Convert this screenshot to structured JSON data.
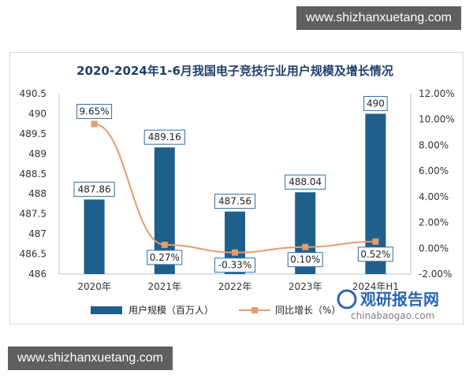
{
  "watermark": {
    "top": "www.shizhanxuetang.com",
    "bottom": "www.shizhanxuetang.com"
  },
  "logo": {
    "name": "观研报告网",
    "url": "chinabaogao.com"
  },
  "colors": {
    "bar": "#1f5f8b",
    "line": "#e89a6e",
    "title": "#1f3f6b",
    "label_border": "#2a6fa8",
    "grid": "#d9d9d9"
  },
  "chart_data": {
    "type": "bar",
    "title": "2020-2024年1-6月我国电子竞技行业用户规模及增长情况",
    "categories": [
      "2020年",
      "2021年",
      "2022年",
      "2023年",
      "2024年H1"
    ],
    "series": [
      {
        "name": "用户规模（百万人）",
        "type": "bar",
        "axis": "left",
        "values": [
          487.86,
          489.16,
          487.56,
          488.04,
          490
        ],
        "labels": [
          "487.86",
          "489.16",
          "487.56",
          "488.04",
          "490"
        ]
      },
      {
        "name": "同比增长（%）",
        "type": "line",
        "axis": "right",
        "values": [
          9.65,
          0.27,
          -0.33,
          0.1,
          0.52
        ],
        "labels": [
          "9.65%",
          "0.27%",
          "-0.33%",
          "0.10%",
          "0.52%"
        ]
      }
    ],
    "y_left": {
      "range": [
        486,
        490.5
      ],
      "ticks": [
        "490.5",
        "490",
        "489.5",
        "489",
        "488.5",
        "488",
        "487.5",
        "487",
        "486.5",
        "486"
      ],
      "tick_values": [
        490.5,
        490,
        489.5,
        489,
        488.5,
        488,
        487.5,
        487,
        486.5,
        486
      ]
    },
    "y_right": {
      "range": [
        -2,
        12
      ],
      "ticks": [
        "12.00%",
        "10.00%",
        "8.00%",
        "6.00%",
        "4.00%",
        "2.00%",
        "0.00%",
        "-2.00%"
      ],
      "tick_values": [
        12,
        10,
        8,
        6,
        4,
        2,
        0,
        -2
      ]
    },
    "grid": false,
    "legend_position": "bottom-left"
  }
}
